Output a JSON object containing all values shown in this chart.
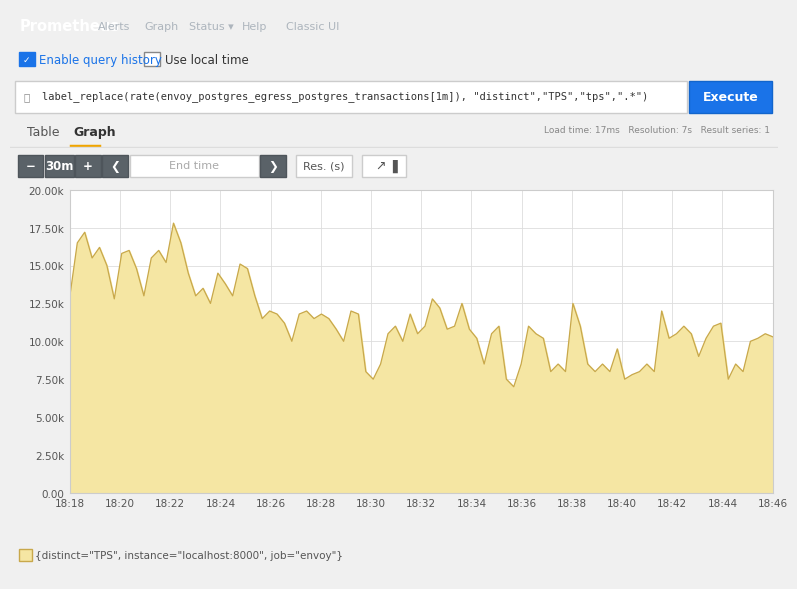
{
  "title": "Prometheus",
  "nav_items": [
    "Alerts",
    "Graph",
    "Status ▾",
    "Help",
    "Classic UI"
  ],
  "query": "label_replace(rate(envoy_postgres_egress_postgres_transactions[1m]), \"distinct\",\"TPS\",\"tps\",\".*\")",
  "load_time": "Load time: 17ms   Resolution: 7s   Result series: 1",
  "tab_table": "Table",
  "tab_graph": "Graph",
  "legend_label": "{distinct=\"TPS\", instance=\"localhost:8000\", job=\"envoy\"}",
  "time_range": "30m",
  "end_time_placeholder": "End time",
  "res_label": "Res. (s)",
  "x_ticks": [
    "18:18",
    "18:20",
    "18:22",
    "18:24",
    "18:26",
    "18:28",
    "18:30",
    "18:32",
    "18:34",
    "18:36",
    "18:38",
    "18:40",
    "18:42",
    "18:44",
    "18:46"
  ],
  "y_max": 20000,
  "y_ticks": [
    0,
    2500,
    5000,
    7500,
    10000,
    12500,
    15000,
    17500,
    20000
  ],
  "y_tick_labels": [
    "0.00",
    "2.50k",
    "5.00k",
    "7.50k",
    "10.00k",
    "12.50k",
    "15.00k",
    "17.50k",
    "20.00k"
  ],
  "fill_color": "#f5e6a3",
  "line_color": "#c8a84b",
  "bg_color": "#ffffff",
  "plot_bg_color": "#ffffff",
  "grid_color": "#dddddd",
  "navbar_color": "#343a40",
  "toolbar_bg": "#f5f5f5",
  "data_y": [
    13000,
    16500,
    17200,
    15500,
    16200,
    15000,
    12800,
    15800,
    16000,
    14800,
    13000,
    15500,
    16000,
    15200,
    17800,
    16500,
    14500,
    13000,
    13500,
    12500,
    14500,
    13800,
    13000,
    15100,
    14800,
    13000,
    11500,
    12000,
    11800,
    11200,
    10000,
    11800,
    12000,
    11500,
    11800,
    11500,
    10800,
    10000,
    12000,
    11800,
    8000,
    7500,
    8500,
    10500,
    11000,
    10000,
    11800,
    10500,
    11000,
    12800,
    12200,
    10800,
    11000,
    12500,
    10800,
    10200,
    8500,
    10500,
    11000,
    7500,
    7000,
    8500,
    11000,
    10500,
    10200,
    8000,
    8500,
    8000,
    12500,
    11000,
    8500,
    8000,
    8500,
    8000,
    9500,
    7500,
    7800,
    8000,
    8500,
    8000,
    12000,
    10200,
    10500,
    11000,
    10500,
    9000,
    10200,
    11000,
    11200,
    7500,
    8500,
    8000,
    10000,
    10200,
    10500,
    10300
  ]
}
